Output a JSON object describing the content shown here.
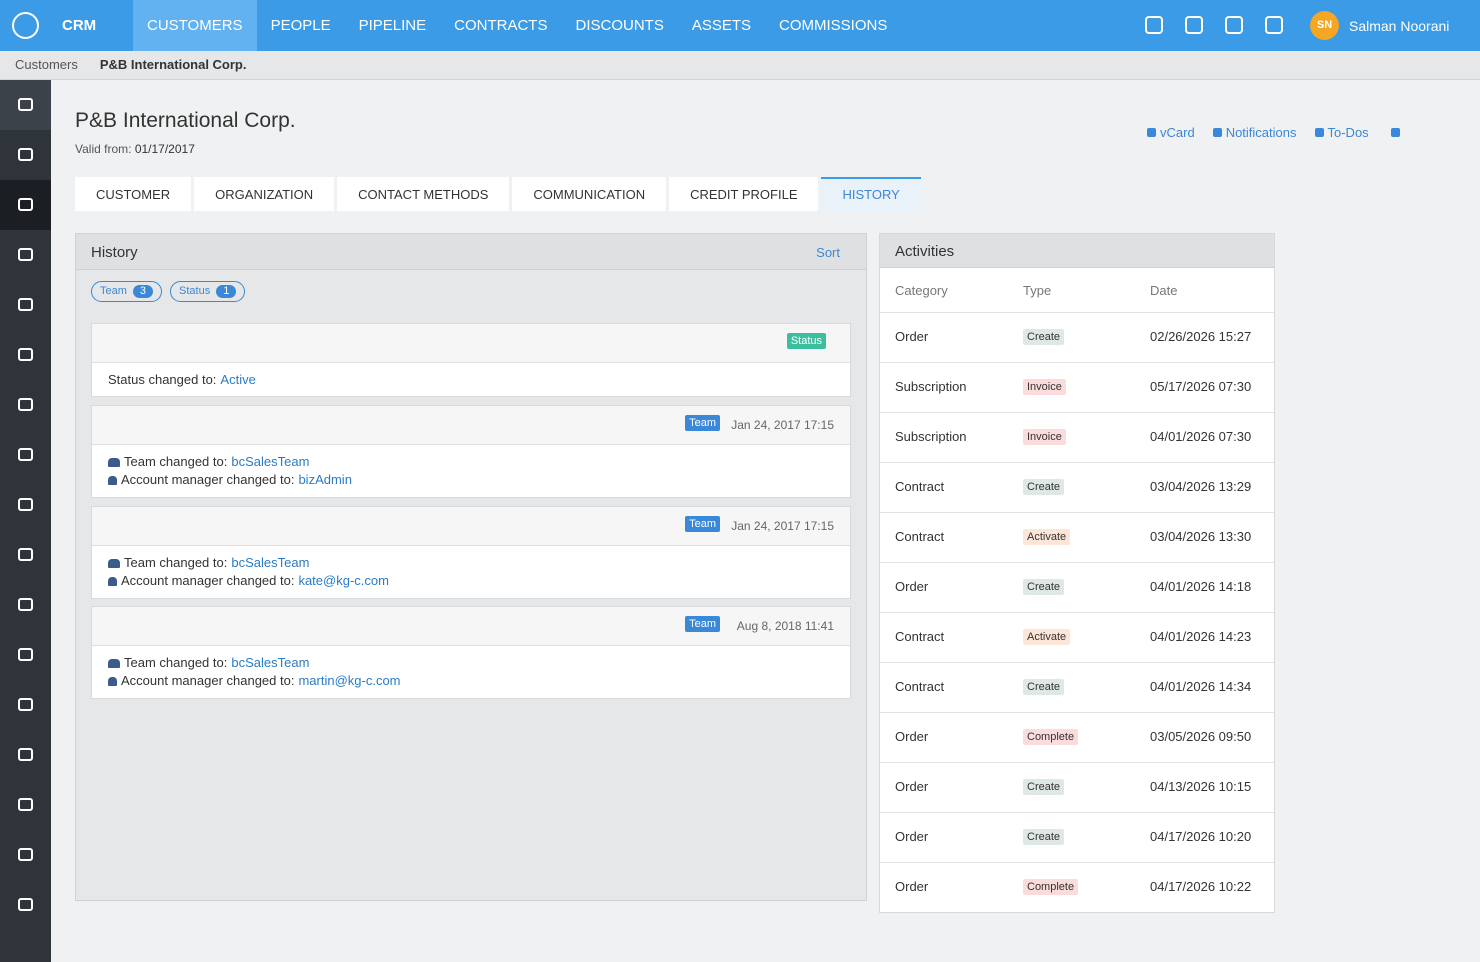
{
  "nav": {
    "app": "CRM",
    "items": [
      "CUSTOMERS",
      "PEOPLE",
      "PIPELINE",
      "CONTRACTS",
      "DISCOUNTS",
      "ASSETS",
      "COMMISSIONS"
    ],
    "user": {
      "initials": "SN",
      "name": "Salman Noorani"
    }
  },
  "breadcrumb": [
    "Customers",
    "P&B International Corp."
  ],
  "header": {
    "title": "P&B International Corp.",
    "valid_label": "Valid from:",
    "valid_date": "01/17/2017",
    "actions": [
      "vCard",
      "Notifications",
      "To-Dos"
    ]
  },
  "tabs": [
    "CUSTOMER",
    "ORGANIZATION",
    "CONTACT METHODS",
    "COMMUNICATION",
    "CREDIT PROFILE",
    "HISTORY"
  ],
  "history": {
    "title": "History",
    "sort": "Sort",
    "filters": [
      {
        "label": "Team",
        "count": 3
      },
      {
        "label": "Status",
        "count": 1
      }
    ],
    "entries": [
      {
        "tag": "Status",
        "tag_color": "#3dbf9f",
        "lines": [
          {
            "label": "Status changed to:",
            "value": "Active"
          }
        ]
      },
      {
        "tag": "Team",
        "tag_color": "#3b87d8",
        "date": "Jan 24, 2017 17:15",
        "lines": [
          {
            "label": "Team changed to:",
            "value": "bcSalesTeam"
          },
          {
            "label": "Account manager changed to:",
            "value": "bizAdmin"
          }
        ]
      },
      {
        "tag": "Team",
        "tag_color": "#3b87d8",
        "date": "Jan 24, 2017 17:15",
        "lines": [
          {
            "label": "Team changed to:",
            "value": "bcSalesTeam"
          },
          {
            "label": "Account manager changed to:",
            "value": "kate@kg-c.com"
          }
        ]
      },
      {
        "tag": "Team",
        "tag_color": "#3b87d8",
        "date": "Aug 8, 2018 11:41",
        "lines": [
          {
            "label": "Team changed to:",
            "value": "bcSalesTeam"
          },
          {
            "label": "Account manager changed to:",
            "value": "martin@kg-c.com"
          }
        ]
      }
    ]
  },
  "activities": {
    "title": "Activities",
    "columns": [
      "Category",
      "Type",
      "Date"
    ],
    "rows": [
      {
        "category": "Order",
        "type": "Create",
        "color": "#dfe8e5",
        "date": "02/26/2026 15:27"
      },
      {
        "category": "Subscription",
        "type": "Invoice",
        "color": "#fbdcdc",
        "date": "05/17/2026 07:30"
      },
      {
        "category": "Subscription",
        "type": "Invoice",
        "color": "#fbdcdc",
        "date": "04/01/2026 07:30"
      },
      {
        "category": "Contract",
        "type": "Create",
        "color": "#dfe8e5",
        "date": "03/04/2026 13:29"
      },
      {
        "category": "Contract",
        "type": "Activate",
        "color": "#fde6d8",
        "date": "03/04/2026 13:30"
      },
      {
        "category": "Order",
        "type": "Create",
        "color": "#dfe8e5",
        "date": "04/01/2026 14:18"
      },
      {
        "category": "Contract",
        "type": "Activate",
        "color": "#fde6d8",
        "date": "04/01/2026 14:23"
      },
      {
        "category": "Contract",
        "type": "Create",
        "color": "#dfe8e5",
        "date": "04/01/2026 14:34"
      },
      {
        "category": "Order",
        "type": "Complete",
        "color": "#fbdcdc",
        "date": "03/05/2026 09:50"
      },
      {
        "category": "Order",
        "type": "Create",
        "color": "#dfe8e5",
        "date": "04/13/2026 10:15"
      },
      {
        "category": "Order",
        "type": "Create",
        "color": "#dfe8e5",
        "date": "04/17/2026 10:20"
      },
      {
        "category": "Order",
        "type": "Complete",
        "color": "#fbdcdc",
        "date": "04/17/2026 10:22"
      }
    ]
  }
}
